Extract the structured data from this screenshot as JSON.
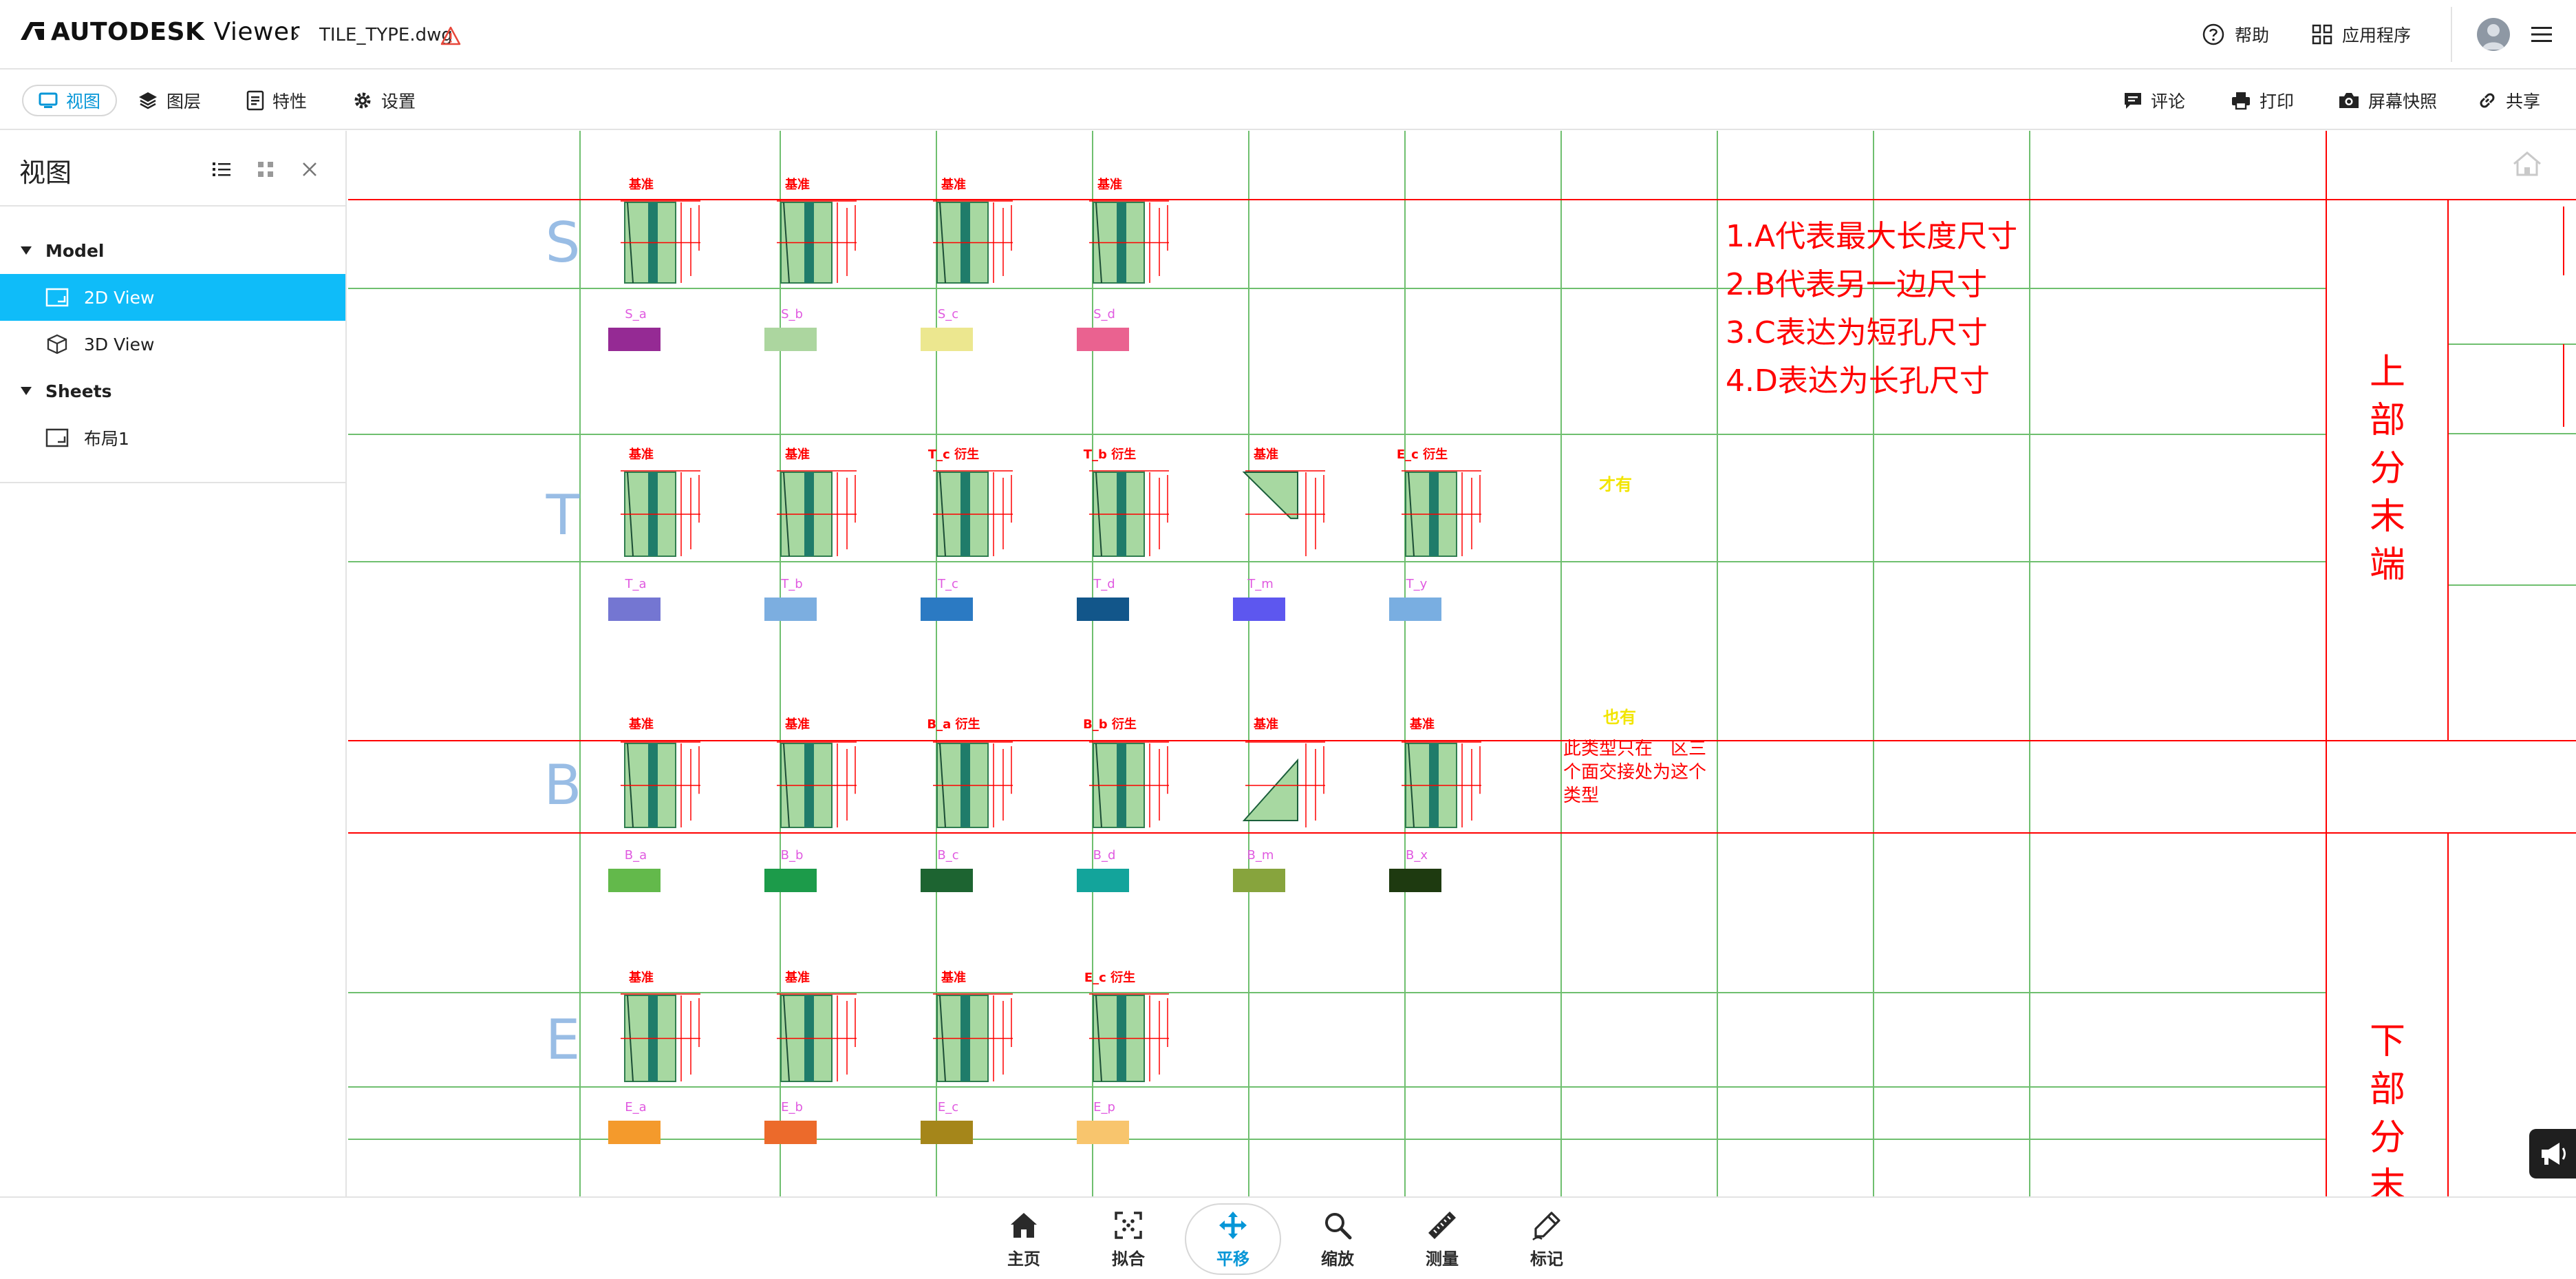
{
  "header": {
    "brand": "AUTODESK",
    "brand_suffix": "Viewer",
    "file_name": "TILE_TYPE.dwg",
    "help_label": "帮助",
    "apps_label": "应用程序"
  },
  "toolbar": {
    "tabs": [
      {
        "label": "视图",
        "active": true
      },
      {
        "label": "图层"
      },
      {
        "label": "特性"
      },
      {
        "label": "设置"
      }
    ],
    "right": [
      {
        "label": "评论"
      },
      {
        "label": "打印"
      },
      {
        "label": "屏幕快照"
      },
      {
        "label": "共享"
      }
    ]
  },
  "panel": {
    "title": "视图",
    "tree": [
      {
        "label": "Model",
        "type": "group"
      },
      {
        "label": "2D View",
        "type": "leaf",
        "selected": true
      },
      {
        "label": "3D View",
        "type": "leaf"
      },
      {
        "label": "Sheets",
        "type": "group"
      },
      {
        "label": "布局1",
        "type": "leaf"
      }
    ]
  },
  "drawing": {
    "row_letters": [
      "S",
      "T",
      "B",
      "E"
    ],
    "header_text": "基准",
    "rows": [
      {
        "letter": "S",
        "headers": [
          "基准",
          "基准",
          "基准",
          "基准"
        ],
        "labels": [
          "S_a",
          "S_b",
          "S_c",
          "S_d"
        ],
        "swatches": [
          "#952a94",
          "#acd69f",
          "#ece78f",
          "#ea6290"
        ]
      },
      {
        "letter": "T",
        "headers": [
          "基准",
          "基准",
          "T_c 衍生",
          "T_b 衍生",
          "基准",
          "E_c 衍生"
        ],
        "labels": [
          "T_a",
          "T_b",
          "T_c",
          "T_d",
          "T_m",
          "T_y"
        ],
        "swatches": [
          "#7476d2",
          "#7caee0",
          "#2b7ac3",
          "#12568a",
          "#5d57ef",
          "#79aee1"
        ]
      },
      {
        "letter": "B",
        "headers": [
          "基准",
          "基准",
          "B_a 衍生",
          "B_b 衍生",
          "基准",
          "基准"
        ],
        "labels": [
          "B_a",
          "B_b",
          "B_c",
          "B_d",
          "B_m",
          "B_x"
        ],
        "swatches": [
          "#63b94b",
          "#1c9b4a",
          "#1d6431",
          "#13a49b",
          "#87a43d",
          "#1e3a10"
        ]
      },
      {
        "letter": "E",
        "headers": [
          "基准",
          "基准",
          "基准",
          "E_c 衍生"
        ],
        "labels": [
          "E_a",
          "E_b",
          "E_c",
          "E_p"
        ],
        "swatches": [
          "#f49a2c",
          "#ec6a2b",
          "#a5861a",
          "#f8c56d"
        ]
      }
    ],
    "notes": [
      "1.A代表最大长度尺寸",
      "2.B代表另一边尺寸",
      "3.C表达为短孔尺寸",
      "4.D表达为长孔尺寸"
    ],
    "t_yellow_note": "才有",
    "b_yellow_note": "也有",
    "b_red_note_lines": [
      "此类型只在　区三",
      "个面交接处为这个",
      "类型"
    ],
    "upper_title": [
      "上",
      "部",
      "分",
      "末",
      "端"
    ],
    "lower_title": [
      "下",
      "部",
      "分",
      "末"
    ]
  },
  "bottom_toolbar": [
    {
      "label": "主页",
      "icon": "home-icon"
    },
    {
      "label": "拟合",
      "icon": "fit-icon"
    },
    {
      "label": "平移",
      "icon": "pan-icon",
      "active": true
    },
    {
      "label": "缩放",
      "icon": "zoom-icon"
    },
    {
      "label": "测量",
      "icon": "measure-icon"
    },
    {
      "label": "标记",
      "icon": "markup-icon"
    }
  ],
  "colors": {
    "accent": "#0696d7",
    "selected_row": "#0fbcf9",
    "cad_red": "#ff0000",
    "cad_green": "#6fbf6f",
    "cad_magenta": "#e05ae0",
    "cad_yellow": "#f2e500",
    "row_letter": "#8fb6e3"
  }
}
